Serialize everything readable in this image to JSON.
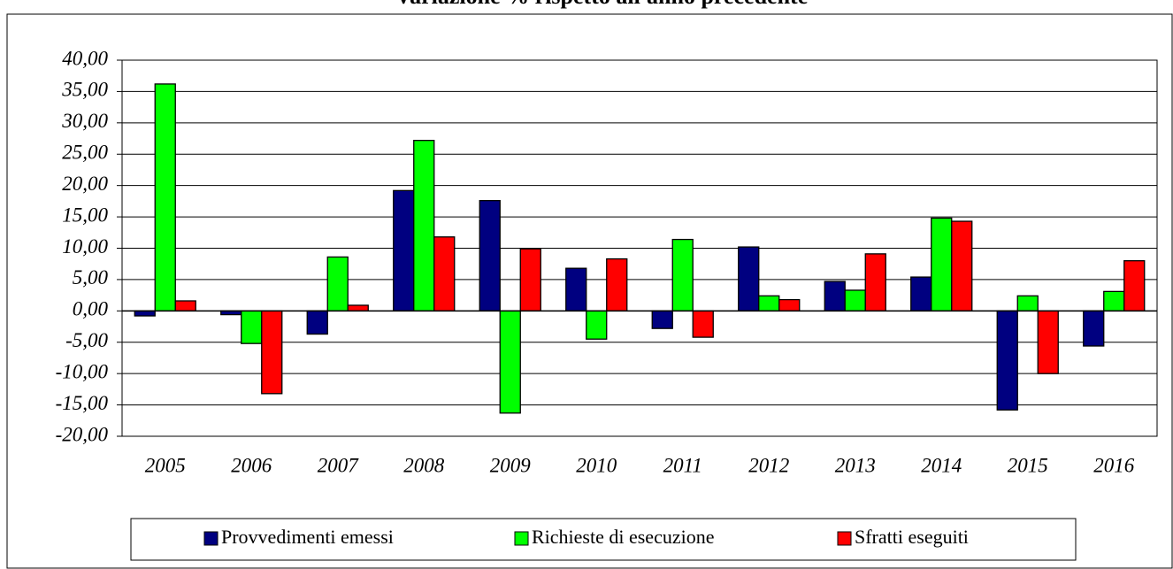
{
  "chart_data": {
    "type": "bar",
    "title": "Variazione % rispetto all'anno precedente",
    "categories": [
      "2005",
      "2006",
      "2007",
      "2008",
      "2009",
      "2010",
      "2011",
      "2012",
      "2013",
      "2014",
      "2015",
      "2016"
    ],
    "series": [
      {
        "name": "Provvedimenti emessi",
        "color": "#000080",
        "values": [
          -0.8,
          -0.6,
          -3.7,
          19.2,
          17.6,
          6.8,
          -2.8,
          10.2,
          4.7,
          5.4,
          -15.8,
          -5.6
        ]
      },
      {
        "name": "Richieste di esecuzione",
        "color": "#00ff00",
        "values": [
          36.2,
          -5.2,
          8.6,
          27.2,
          -16.3,
          -4.5,
          11.4,
          2.4,
          3.3,
          14.8,
          2.4,
          3.1
        ]
      },
      {
        "name": "Sfratti eseguiti",
        "color": "#ff0000",
        "values": [
          1.6,
          -13.2,
          0.9,
          11.8,
          9.9,
          8.3,
          -4.2,
          1.8,
          9.1,
          14.3,
          -10.0,
          8.0
        ]
      }
    ],
    "ylim": [
      -20,
      40
    ],
    "yticks": [
      {
        "value": -20,
        "label": "-20,00"
      },
      {
        "value": -15,
        "label": "-15,00"
      },
      {
        "value": -10,
        "label": "-10,00"
      },
      {
        "value": -5,
        "label": "-5,00"
      },
      {
        "value": 0,
        "label": "0,00"
      },
      {
        "value": 5,
        "label": "5,00"
      },
      {
        "value": 10,
        "label": "10,00"
      },
      {
        "value": 15,
        "label": "15,00"
      },
      {
        "value": 20,
        "label": "20,00"
      },
      {
        "value": 25,
        "label": "25,00"
      },
      {
        "value": 30,
        "label": "30,00"
      },
      {
        "value": 35,
        "label": "35,00"
      },
      {
        "value": 40,
        "label": "40,00"
      }
    ],
    "grid": true,
    "legend": "bottom"
  }
}
